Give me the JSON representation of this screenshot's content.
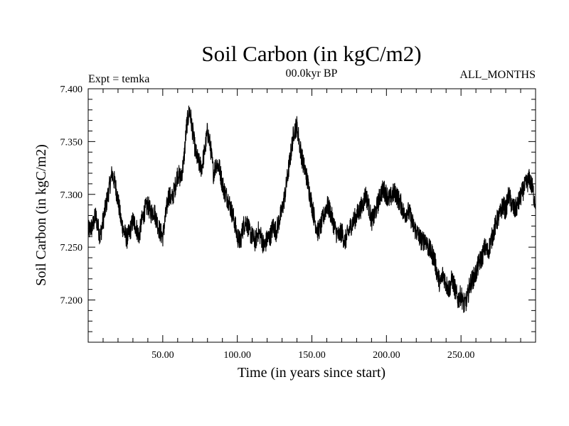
{
  "chart_data": {
    "type": "line",
    "title": "Soil Carbon (in kgC/m2)",
    "subtitle_left": "Expt = temka",
    "subtitle_center": "00.0kyr BP",
    "subtitle_right": "ALL_MONTHS",
    "xlabel": "Time (in years since start)",
    "ylabel": "Soil Carbon (in kgC/m2)",
    "xlim": [
      0,
      300
    ],
    "ylim": [
      7.16,
      7.4
    ],
    "grid": false,
    "x_ticks": [
      {
        "value": 50,
        "label": "50.00"
      },
      {
        "value": 100,
        "label": "100.00"
      },
      {
        "value": 150,
        "label": "150.00"
      },
      {
        "value": 200,
        "label": "200.00"
      },
      {
        "value": 250,
        "label": "250.00"
      }
    ],
    "y_ticks": [
      {
        "value": 7.2,
        "label": "7.200"
      },
      {
        "value": 7.25,
        "label": "7.250"
      },
      {
        "value": 7.3,
        "label": "7.300"
      },
      {
        "value": 7.35,
        "label": "7.350"
      },
      {
        "value": 7.4,
        "label": "7.400"
      }
    ],
    "series": [
      {
        "name": "Soil Carbon",
        "noise": 0.01,
        "x": [
          0,
          3,
          5,
          8,
          10,
          12,
          14,
          16,
          18,
          20,
          22,
          24,
          26,
          28,
          30,
          32,
          34,
          36,
          38,
          40,
          42,
          44,
          46,
          48,
          50,
          52,
          54,
          56,
          58,
          60,
          62,
          64,
          66,
          68,
          70,
          72,
          74,
          76,
          78,
          80,
          82,
          84,
          86,
          88,
          90,
          92,
          94,
          96,
          98,
          100,
          102,
          104,
          106,
          108,
          110,
          112,
          114,
          116,
          118,
          120,
          122,
          124,
          126,
          128,
          130,
          132,
          134,
          136,
          138,
          140,
          142,
          144,
          146,
          148,
          150,
          152,
          154,
          156,
          158,
          160,
          162,
          164,
          166,
          168,
          170,
          172,
          174,
          176,
          178,
          180,
          182,
          184,
          186,
          188,
          190,
          192,
          194,
          196,
          198,
          200,
          202,
          204,
          206,
          208,
          210,
          212,
          214,
          216,
          218,
          220,
          222,
          224,
          226,
          228,
          230,
          232,
          234,
          236,
          238,
          240,
          242,
          244,
          246,
          248,
          250,
          252,
          254,
          256,
          258,
          260,
          262,
          264,
          266,
          268,
          270,
          272,
          274,
          276,
          278,
          280,
          282,
          284,
          286,
          288,
          290,
          292,
          294,
          296,
          298,
          300
        ],
        "y": [
          7.265,
          7.27,
          7.28,
          7.26,
          7.275,
          7.29,
          7.305,
          7.32,
          7.31,
          7.295,
          7.275,
          7.265,
          7.258,
          7.265,
          7.275,
          7.27,
          7.26,
          7.275,
          7.285,
          7.29,
          7.282,
          7.285,
          7.275,
          7.265,
          7.26,
          7.28,
          7.3,
          7.295,
          7.305,
          7.32,
          7.315,
          7.33,
          7.365,
          7.38,
          7.36,
          7.34,
          7.33,
          7.325,
          7.34,
          7.36,
          7.345,
          7.32,
          7.33,
          7.325,
          7.31,
          7.3,
          7.295,
          7.285,
          7.275,
          7.26,
          7.255,
          7.27,
          7.275,
          7.265,
          7.26,
          7.255,
          7.265,
          7.26,
          7.25,
          7.258,
          7.26,
          7.27,
          7.265,
          7.275,
          7.285,
          7.3,
          7.32,
          7.34,
          7.36,
          7.365,
          7.345,
          7.33,
          7.32,
          7.305,
          7.29,
          7.275,
          7.265,
          7.27,
          7.28,
          7.29,
          7.285,
          7.275,
          7.265,
          7.26,
          7.265,
          7.255,
          7.262,
          7.27,
          7.275,
          7.28,
          7.285,
          7.29,
          7.3,
          7.29,
          7.275,
          7.28,
          7.29,
          7.3,
          7.305,
          7.3,
          7.295,
          7.3,
          7.302,
          7.295,
          7.29,
          7.28,
          7.285,
          7.28,
          7.27,
          7.265,
          7.26,
          7.255,
          7.258,
          7.25,
          7.245,
          7.24,
          7.225,
          7.215,
          7.225,
          7.215,
          7.21,
          7.22,
          7.21,
          7.2,
          7.205,
          7.195,
          7.2,
          7.215,
          7.22,
          7.225,
          7.235,
          7.24,
          7.25,
          7.245,
          7.255,
          7.265,
          7.275,
          7.28,
          7.29,
          7.285,
          7.3,
          7.29,
          7.285,
          7.29,
          7.298,
          7.305,
          7.31,
          7.315,
          7.305,
          7.29
        ]
      }
    ]
  }
}
